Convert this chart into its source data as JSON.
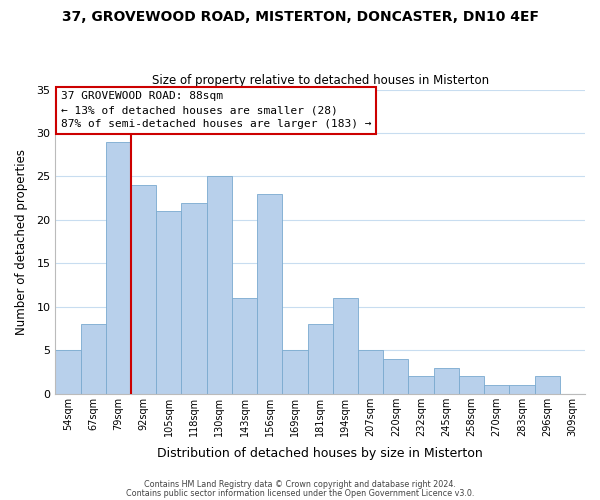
{
  "title": "37, GROVEWOOD ROAD, MISTERTON, DONCASTER, DN10 4EF",
  "subtitle": "Size of property relative to detached houses in Misterton",
  "xlabel": "Distribution of detached houses by size in Misterton",
  "ylabel": "Number of detached properties",
  "bin_labels": [
    "54sqm",
    "67sqm",
    "79sqm",
    "92sqm",
    "105sqm",
    "118sqm",
    "130sqm",
    "143sqm",
    "156sqm",
    "169sqm",
    "181sqm",
    "194sqm",
    "207sqm",
    "220sqm",
    "232sqm",
    "245sqm",
    "258sqm",
    "270sqm",
    "283sqm",
    "296sqm",
    "309sqm"
  ],
  "bar_heights": [
    5,
    8,
    29,
    24,
    21,
    22,
    25,
    11,
    23,
    5,
    8,
    11,
    5,
    4,
    2,
    3,
    2,
    1,
    1,
    2,
    0
  ],
  "bar_color": "#b8d0eb",
  "bar_edge_color": "#7aaacf",
  "vline_color": "#cc0000",
  "vline_x_idx": 2.5,
  "ylim": [
    0,
    35
  ],
  "yticks": [
    0,
    5,
    10,
    15,
    20,
    25,
    30,
    35
  ],
  "annotation_title": "37 GROVEWOOD ROAD: 88sqm",
  "annotation_line1": "← 13% of detached houses are smaller (28)",
  "annotation_line2": "87% of semi-detached houses are larger (183) →",
  "annotation_box_color": "#ffffff",
  "annotation_box_edge": "#cc0000",
  "footer1": "Contains HM Land Registry data © Crown copyright and database right 2024.",
  "footer2": "Contains public sector information licensed under the Open Government Licence v3.0.",
  "background_color": "#ffffff",
  "grid_color": "#c8ddf0"
}
